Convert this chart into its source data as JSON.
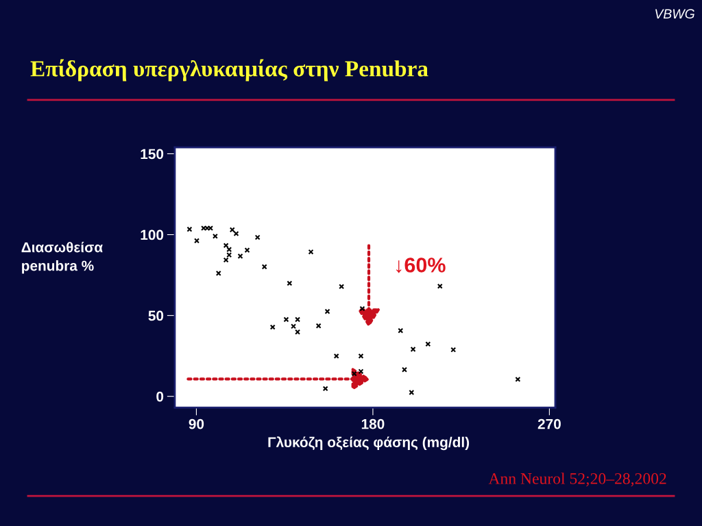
{
  "chart_data": {
    "type": "scatter",
    "title": "Επίδραση υπεργλυκαιμίας στην Penubra",
    "xlabel": "Γλυκόζη οξείας φάσης (mg/dl)",
    "ylabel": "Διασωθείσα\npenubra %",
    "x": [
      86.5,
      90.2,
      93.7,
      95.5,
      97.2,
      99.6,
      101.3,
      105.1,
      106.7,
      106.7,
      105.1,
      108.3,
      110.3,
      112.4,
      115.9,
      121.2,
      124.7,
      128.9,
      135.8,
      137.5,
      139.5,
      141.6,
      141.6,
      148.4,
      152.3,
      156.8,
      155.8,
      161.4,
      164,
      170.5,
      173.9,
      173.9,
      174.6,
      194.1,
      200.5,
      208.1,
      214.2,
      221,
      196.1,
      199.7,
      253.9
    ],
    "series": [
      {
        "color": "#000000",
        "values": [
          103.3,
          96.2,
          104,
          104,
          104,
          99,
          76.1,
          93.3,
          90.8,
          87.4,
          84.3,
          103,
          100.6,
          86.7,
          90.4,
          98.3,
          80.1,
          42.8,
          47.5,
          69.9,
          43.3,
          47.5,
          39.8,
          89.3,
          43.6,
          52.5,
          4.8,
          24.9,
          67.9,
          14,
          24.9,
          15.4,
          54.2,
          40.6,
          29.1,
          32.3,
          68.1,
          28.8,
          16.5,
          2.4,
          10.5
        ]
      }
    ],
    "xlim": [
      79,
      273
    ],
    "ylim": [
      -7,
      154
    ],
    "xticks": [
      90,
      180,
      270
    ],
    "yticks": [
      0,
      50,
      100,
      150
    ],
    "marker": "cross",
    "grid": false,
    "legend": false,
    "annotations": [
      "↓60%",
      "Ann Neurol 52;20–28,2002",
      "VBWG"
    ]
  }
}
